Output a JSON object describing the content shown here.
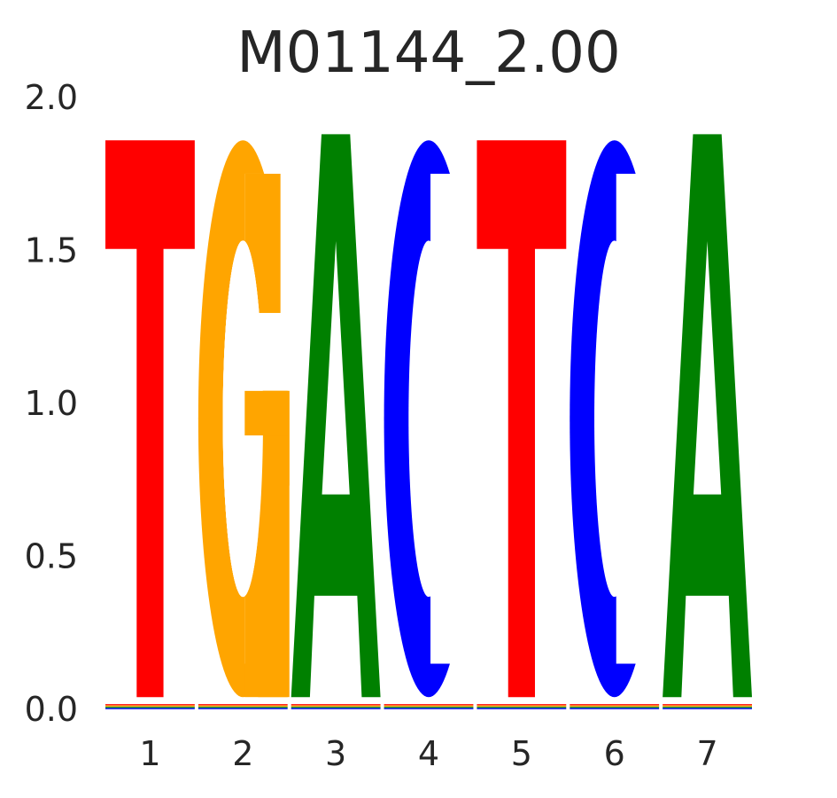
{
  "chart_data": {
    "type": "sequence-logo",
    "title": "M01144_2.00",
    "xlabel": "",
    "ylabel": "",
    "ylim": [
      0,
      2
    ],
    "y_ticks": [
      "0.0",
      "0.5",
      "1.0",
      "1.5",
      "2.0"
    ],
    "y_tick_values": [
      0,
      0.5,
      1,
      1.5,
      2
    ],
    "positions": [
      "1",
      "2",
      "3",
      "4",
      "5",
      "6",
      "7"
    ],
    "letters": [
      {
        "letter": "T",
        "height": 1.82
      },
      {
        "letter": "G",
        "height": 1.82
      },
      {
        "letter": "A",
        "height": 1.84
      },
      {
        "letter": "C",
        "height": 1.82
      },
      {
        "letter": "T",
        "height": 1.82
      },
      {
        "letter": "C",
        "height": 1.82
      },
      {
        "letter": "A",
        "height": 1.84
      }
    ],
    "grid": false,
    "colors": {
      "A": "#008000",
      "C": "#0000ff",
      "G": "#ffa500",
      "T": "#ff0000"
    }
  }
}
